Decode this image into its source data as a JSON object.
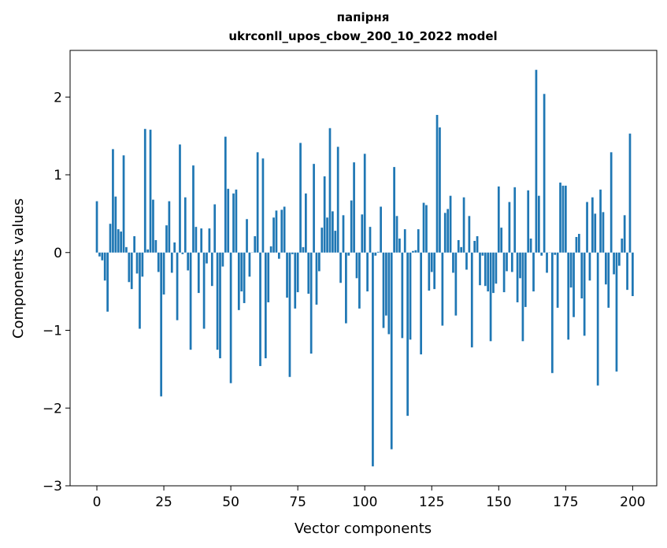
{
  "chart_data": {
    "type": "bar",
    "title": "папірня",
    "subtitle": "ukrconll_upos_cbow_200_10_2022 model",
    "xlabel": "Vector components",
    "ylabel": "Components values",
    "xlim": [
      -10,
      209
    ],
    "ylim": [
      -3,
      2.6
    ],
    "xticks": [
      0,
      25,
      50,
      75,
      100,
      125,
      150,
      175,
      200
    ],
    "yticks": [
      -3,
      -2,
      -1,
      0,
      1,
      2
    ],
    "ytick_labels": [
      "−3",
      "−2",
      "−1",
      "0",
      "1",
      "2"
    ],
    "grid": false,
    "bar_color": "#1f77b4",
    "values": [
      0.66,
      -0.05,
      -0.1,
      -0.36,
      -0.76,
      0.37,
      1.33,
      0.72,
      0.3,
      0.27,
      1.25,
      0.07,
      -0.38,
      -0.47,
      0.21,
      -0.27,
      -0.98,
      -0.31,
      1.59,
      0.04,
      1.58,
      0.68,
      0.16,
      -0.25,
      -1.85,
      -0.54,
      0.35,
      0.66,
      -0.26,
      0.13,
      -0.87,
      1.39,
      -0.02,
      0.71,
      -0.23,
      -1.25,
      1.12,
      0.33,
      -0.52,
      0.31,
      -0.98,
      -0.14,
      0.31,
      -0.43,
      0.62,
      -1.25,
      -1.36,
      -0.18,
      1.49,
      0.82,
      -1.68,
      0.76,
      0.81,
      -0.74,
      -0.5,
      -0.65,
      0.43,
      -0.31,
      0.0,
      0.21,
      1.29,
      -1.46,
      1.21,
      -1.36,
      -0.64,
      0.08,
      0.45,
      0.54,
      -0.08,
      0.55,
      0.59,
      -0.58,
      -1.6,
      -0.02,
      -0.72,
      -0.51,
      1.41,
      0.07,
      0.76,
      -0.53,
      -1.3,
      1.14,
      -0.67,
      -0.24,
      0.32,
      0.98,
      0.45,
      1.6,
      0.53,
      0.28,
      1.36,
      -0.39,
      0.48,
      -0.91,
      -0.04,
      0.67,
      1.16,
      -0.33,
      -0.72,
      0.49,
      1.27,
      -0.5,
      0.33,
      -2.75,
      -0.04,
      0.01,
      0.59,
      -0.97,
      -0.81,
      -1.05,
      -2.53,
      1.1,
      0.47,
      0.18,
      -1.1,
      0.3,
      -2.1,
      -1.12,
      0.02,
      0.03,
      0.3,
      -1.31,
      0.64,
      0.61,
      -0.49,
      -0.25,
      -0.47,
      1.77,
      1.61,
      -0.94,
      0.51,
      0.56,
      0.73,
      -0.26,
      -0.81,
      0.16,
      0.07,
      0.71,
      -0.22,
      0.47,
      -1.22,
      0.15,
      0.21,
      -0.42,
      -0.04,
      -0.43,
      -0.5,
      -1.14,
      -0.52,
      -0.4,
      0.85,
      0.32,
      -0.51,
      -0.24,
      0.65,
      -0.25,
      0.84,
      -0.64,
      -0.33,
      -1.14,
      -0.7,
      0.8,
      0.18,
      -0.5,
      2.35,
      0.73,
      -0.04,
      2.04,
      -0.26,
      0.0,
      -1.55,
      -0.03,
      -0.71,
      0.9,
      0.86,
      0.86,
      -1.12,
      -0.45,
      -0.83,
      0.2,
      0.24,
      -0.59,
      -1.07,
      0.65,
      -0.36,
      0.71,
      0.5,
      -1.71,
      0.81,
      0.52,
      -0.41,
      -0.71,
      1.29,
      -0.28,
      -1.53,
      -0.17,
      0.18,
      0.48,
      -0.48,
      1.53,
      -0.56
    ]
  }
}
